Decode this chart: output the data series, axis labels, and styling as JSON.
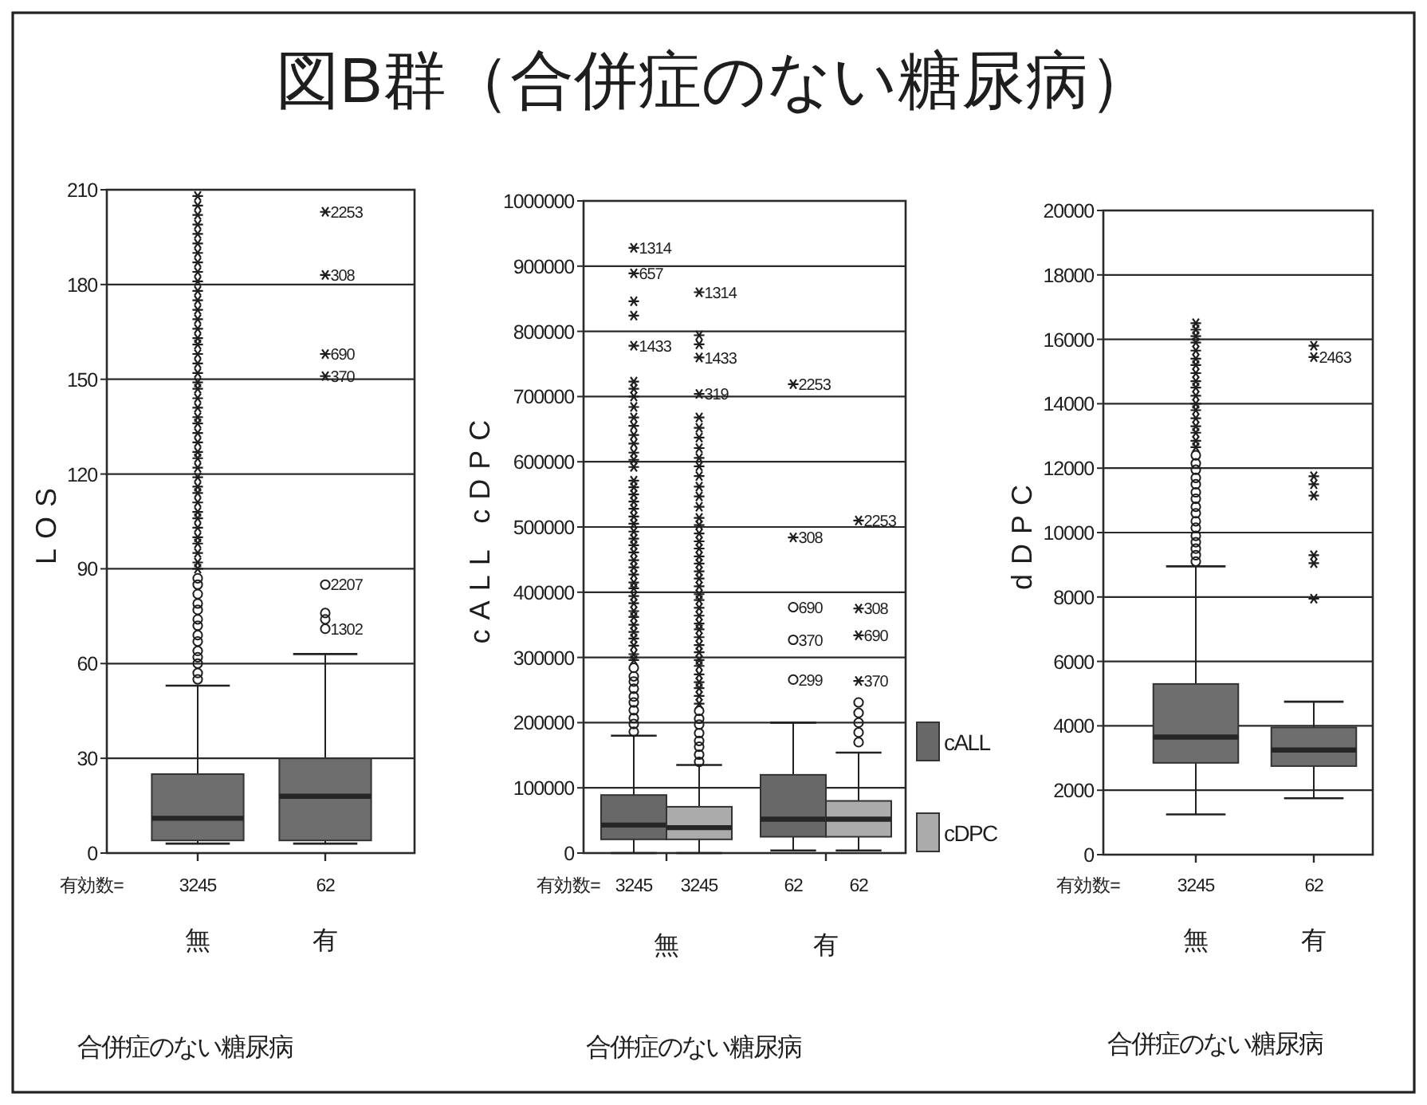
{
  "chart_data": [
    {
      "type": "box",
      "title": "図B群（合併症のない糖尿病）",
      "xlabel": "合併症のない糖尿病",
      "ylabel": "LOS",
      "categories": [
        "無",
        "有"
      ],
      "ylim": [
        0,
        210
      ],
      "yticks": [
        0,
        30,
        60,
        90,
        120,
        150,
        180,
        210
      ],
      "grid": "y",
      "series": [
        {
          "color": "#6e6e6e",
          "boxes": [
            {
              "low": 3,
              "q1": 4,
              "median": 11,
              "q3": 25,
              "high": 53
            },
            {
              "low": 3,
              "q1": 4,
              "median": 18,
              "q3": 30,
              "high": 63
            }
          ]
        },
        {
          "type": "scatter",
          "marker": "circle",
          "color": "#1e1e1e",
          "x": [
            "無",
            "無",
            "無",
            "無",
            "無",
            "無",
            "無",
            "無",
            "無",
            "無",
            "無",
            "無",
            "無",
            "無",
            "有",
            "有",
            "有",
            "有"
          ],
          "values": [
            55,
            57,
            60,
            62,
            64,
            67,
            69,
            72,
            74,
            77,
            79,
            82,
            85,
            87,
            71,
            74,
            76,
            85
          ]
        },
        {
          "type": "scatter",
          "marker": "cross",
          "color": "#1e1e1e",
          "x": [
            "無",
            "無",
            "無",
            "無",
            "無",
            "無",
            "無",
            "無",
            "無",
            "無",
            "無",
            "無",
            "無",
            "無",
            "無",
            "無",
            "無",
            "無",
            "無",
            "無",
            "無",
            "無",
            "無",
            "無",
            "無",
            "無",
            "無",
            "無",
            "無",
            "無",
            "無",
            "無",
            "無",
            "無",
            "無",
            "無",
            "無",
            "無",
            "無",
            "無",
            "無",
            "無",
            "無",
            "有",
            "有",
            "有",
            "有"
          ],
          "values": [
            90,
            92,
            95,
            98,
            100,
            103,
            106,
            108,
            111,
            114,
            116,
            119,
            122,
            125,
            127,
            130,
            133,
            136,
            138,
            141,
            144,
            147,
            149,
            152,
            155,
            158,
            161,
            163,
            166,
            169,
            172,
            175,
            178,
            181,
            184,
            187,
            190,
            193,
            196,
            199,
            202,
            205,
            208,
            151,
            158,
            183,
            203
          ]
        }
      ],
      "annotations": [
        "有効数=",
        "3245",
        "62",
        {
          "text": "1302",
          "x": "有",
          "y": 71
        },
        {
          "text": "2207",
          "x": "有",
          "y": 85
        },
        {
          "text": "370",
          "x": "有",
          "y": 151
        },
        {
          "text": "690",
          "x": "有",
          "y": 158
        },
        {
          "text": "308",
          "x": "有",
          "y": 183
        },
        {
          "text": "2253",
          "x": "有",
          "y": 203
        }
      ]
    },
    {
      "type": "box",
      "xlabel": "合併症のない糖尿病",
      "ylabel": "cALL cDPC",
      "categories": [
        "無",
        "有"
      ],
      "ylim": [
        0,
        1000000
      ],
      "yticks": [
        0,
        100000,
        200000,
        300000,
        400000,
        500000,
        600000,
        700000,
        800000,
        900000,
        1000000
      ],
      "grid": "y",
      "legend": "right",
      "series": [
        {
          "name": "cALL",
          "color": "#686868",
          "boxes": [
            {
              "low": 0,
              "q1": 21000,
              "median": 43000,
              "q3": 89000,
              "high": 180000
            },
            {
              "low": 4000,
              "q1": 25000,
              "median": 52000,
              "q3": 120000,
              "high": 200000
            }
          ]
        },
        {
          "name": "cDPC",
          "color": "#ababab",
          "boxes": [
            {
              "low": 0,
              "q1": 21000,
              "median": 39000,
              "q3": 71000,
              "high": 135000
            },
            {
              "low": 4000,
              "q1": 25000,
              "median": 52000,
              "q3": 80000,
              "high": 154000
            }
          ]
        },
        {
          "type": "scatter",
          "marker": "circle",
          "color": "#1e1e1e",
          "x": [
            "無",
            "無",
            "無",
            "無",
            "無",
            "無",
            "無",
            "無",
            "無",
            "無"
          ],
          "values": [
            186000,
            198000,
            207000,
            219000,
            231000,
            240000,
            252000,
            263000,
            271000,
            284000
          ]
        },
        {
          "type": "scatter",
          "marker": "circle",
          "color": "#1e1e1e",
          "x": [
            "無",
            "無",
            "無",
            "無",
            "無",
            "無",
            "無",
            "無",
            "有",
            "有",
            "有",
            "有",
            "有"
          ],
          "values": [
            140000,
            151000,
            163000,
            172000,
            184000,
            197000,
            206000,
            218000,
            170000,
            185000,
            200000,
            215000,
            231000
          ]
        },
        {
          "type": "scatter",
          "marker": "cross",
          "color": "#1e1e1e",
          "x": [
            "無",
            "無",
            "無",
            "無",
            "無",
            "無",
            "無",
            "無",
            "無",
            "無",
            "無",
            "無",
            "無",
            "無",
            "無",
            "無",
            "無",
            "無",
            "無",
            "無",
            "無",
            "無",
            "無",
            "無",
            "無",
            "無",
            "無",
            "無",
            "無",
            "無",
            "無",
            "無",
            "無",
            "無",
            "無",
            "無",
            "無",
            "無",
            "無"
          ],
          "values": [
            296000,
            305000,
            318000,
            329000,
            339000,
            350000,
            362000,
            371000,
            383000,
            394000,
            406000,
            415000,
            427000,
            438000,
            449000,
            461000,
            472000,
            482000,
            493000,
            505000,
            516000,
            528000,
            539000,
            550000,
            561000,
            571000,
            592000,
            603000,
            614000,
            628000,
            641000,
            655000,
            668000,
            684000,
            700000,
            712000,
            723000,
            824000,
            846000
          ]
        },
        {
          "type": "scatter",
          "marker": "cross",
          "color": "#1e1e1e",
          "x": [
            "無",
            "無",
            "無",
            "無",
            "無",
            "無",
            "無",
            "無",
            "無",
            "無",
            "無",
            "無",
            "無",
            "無",
            "無",
            "無",
            "無",
            "無",
            "無",
            "無",
            "無",
            "無",
            "無",
            "無",
            "無",
            "無",
            "無",
            "無",
            "無",
            "無",
            "無",
            "無",
            "無",
            "無",
            "無",
            "無",
            "無",
            "無"
          ],
          "values": [
            229000,
            241000,
            253000,
            262000,
            274000,
            287000,
            296000,
            308000,
            319000,
            331000,
            343000,
            352000,
            364000,
            376000,
            388000,
            397000,
            409000,
            421000,
            432000,
            444000,
            455000,
            467000,
            478000,
            490000,
            503000,
            514000,
            531000,
            547000,
            562000,
            578000,
            593000,
            606000,
            621000,
            637000,
            652000,
            668000,
            780000,
            794000
          ]
        },
        {
          "type": "scatter",
          "marker": "circle",
          "color": "#1e1e1e",
          "x": [
            "有",
            "有",
            "有"
          ],
          "values": [
            266000,
            327000,
            377000
          ]
        },
        {
          "type": "scatter",
          "marker": "cross",
          "color": "#1e1e1e",
          "x": [
            "無",
            "無",
            "無",
            "有",
            "有",
            "有",
            "有"
          ],
          "values": [
            704000,
            760000,
            860000,
            264000,
            334000,
            375000,
            510000
          ]
        },
        {
          "type": "scatter",
          "marker": "cross",
          "color": "#1e1e1e",
          "x": [
            "無",
            "無",
            "無",
            "有",
            "有"
          ],
          "values": [
            778000,
            889000,
            928000,
            484000,
            719000
          ]
        }
      ],
      "annotations": [
        "有効数=",
        "3245",
        "3245",
        "62",
        "62",
        "299",
        "370",
        "690",
        "319",
        "1433",
        "1314",
        "370",
        "690",
        "308",
        "2253",
        "1433",
        "657",
        "1314",
        "308",
        "2253"
      ]
    },
    {
      "type": "box",
      "xlabel": "合併症のない糖尿病",
      "ylabel": "dDPC",
      "categories": [
        "無",
        "有"
      ],
      "ylim": [
        0,
        20000
      ],
      "yticks": [
        0,
        2000,
        4000,
        6000,
        8000,
        10000,
        12000,
        14000,
        16000,
        18000,
        20000
      ],
      "grid": "y",
      "series": [
        {
          "color": "#6e6e6e",
          "boxes": [
            {
              "low": 1250,
              "q1": 2850,
              "median": 3650,
              "q3": 5300,
              "high": 8950
            },
            {
              "low": 1750,
              "q1": 2750,
              "median": 3250,
              "q3": 3950,
              "high": 4750
            }
          ]
        },
        {
          "type": "scatter",
          "marker": "circle",
          "color": "#1e1e1e",
          "x": [
            "無",
            "無",
            "無",
            "無",
            "無",
            "無",
            "無",
            "無",
            "無",
            "無",
            "無",
            "無",
            "無",
            "無",
            "無",
            "無"
          ],
          "values": [
            9100,
            9300,
            9500,
            9700,
            9900,
            10150,
            10350,
            10600,
            10800,
            11050,
            11250,
            11500,
            11700,
            11950,
            12150,
            12400
          ]
        },
        {
          "type": "scatter",
          "marker": "cross",
          "color": "#1e1e1e",
          "x": [
            "無",
            "無",
            "無",
            "無",
            "無",
            "無",
            "無",
            "無",
            "無",
            "無",
            "無",
            "無",
            "無",
            "無",
            "無",
            "無",
            "無",
            "無",
            "有",
            "有",
            "有",
            "有",
            "有",
            "有",
            "有",
            "有"
          ],
          "values": [
            12650,
            12850,
            13100,
            13300,
            13550,
            13800,
            14000,
            14250,
            14500,
            14700,
            14950,
            15200,
            15400,
            15650,
            15900,
            16100,
            16300,
            16500,
            7950,
            9050,
            9300,
            11150,
            11500,
            11750,
            15450,
            15800
          ]
        }
      ],
      "annotations": [
        "有効数=",
        "3245",
        "62",
        {
          "text": "2463",
          "x": "有",
          "y": 15450
        }
      ]
    }
  ]
}
